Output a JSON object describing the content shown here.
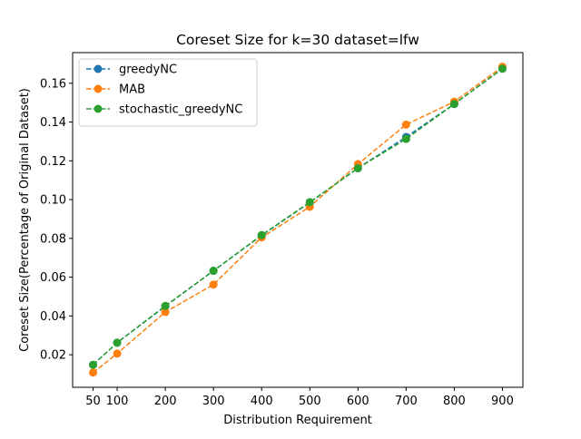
{
  "chart_data": {
    "type": "line",
    "title": "Coreset Size for k=30 dataset=lfw",
    "xlabel": "Distribution Requirement",
    "ylabel": "Coreset Size(Percentage of Original Dataset)",
    "x": [
      50,
      100,
      200,
      300,
      400,
      500,
      600,
      700,
      800,
      900
    ],
    "xticks": [
      50,
      100,
      200,
      300,
      400,
      500,
      600,
      700,
      800,
      900
    ],
    "yticks": [
      0.02,
      0.04,
      0.06,
      0.08,
      0.1,
      0.12,
      0.14,
      0.16
    ],
    "ytick_labels": [
      "0.02",
      "0.04",
      "0.06",
      "0.08",
      "0.10",
      "0.12",
      "0.14",
      "0.16"
    ],
    "xlim": [
      7.5,
      942.5
    ],
    "ylim": [
      0.0032,
      0.1758
    ],
    "grid": false,
    "legend_position": "upper-left",
    "series": [
      {
        "name": "greedyNC",
        "color": "#1f77b4",
        "values": [
          0.0148,
          0.0262,
          0.045,
          0.0633,
          0.0815,
          0.0985,
          0.1162,
          0.1323,
          0.1493,
          0.1675
        ]
      },
      {
        "name": "MAB",
        "color": "#ff7f0e",
        "values": [
          0.0108,
          0.0206,
          0.042,
          0.0562,
          0.0805,
          0.0963,
          0.1183,
          0.1387,
          0.1505,
          0.1685
        ]
      },
      {
        "name": "stochastic_greedyNC",
        "color": "#2ca02c",
        "values": [
          0.0148,
          0.0262,
          0.0452,
          0.0633,
          0.0817,
          0.0987,
          0.1162,
          0.1313,
          0.1493,
          0.1675
        ]
      }
    ]
  }
}
